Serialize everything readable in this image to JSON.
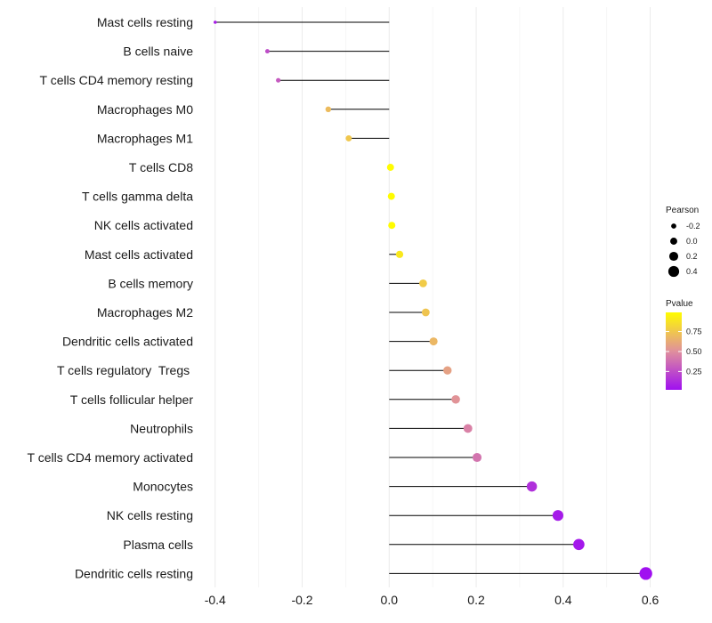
{
  "chart_data": {
    "type": "lollipop",
    "title": "",
    "xlabel": "",
    "ylabel": "",
    "xlim": [
      -0.42,
      0.605
    ],
    "x_ticks": [
      -0.4,
      -0.2,
      0.0,
      0.2,
      0.4,
      0.6
    ],
    "x_tick_labels": [
      "-0.4",
      "-0.2",
      "0.0",
      "0.2",
      "0.4",
      "0.6"
    ],
    "grid": true,
    "categories": [
      "Mast cells resting",
      "B cells naive",
      "T cells CD4 memory resting",
      "Macrophages M0",
      "Macrophages M1",
      "T cells CD8",
      "T cells gamma delta",
      "NK cells activated",
      "Mast cells activated",
      "B cells memory",
      "Macrophages M2",
      "Dendritic cells activated",
      "T cells regulatory  Tregs ",
      "T cells follicular helper",
      "Neutrophils",
      "T cells CD4 memory activated",
      "Monocytes",
      "NK cells resting",
      "Plasma cells",
      "Dendritic cells resting"
    ],
    "pearson": [
      -0.4,
      -0.28,
      -0.255,
      -0.14,
      -0.093,
      0.003,
      0.005,
      0.006,
      0.024,
      0.078,
      0.084,
      0.102,
      0.134,
      0.153,
      0.181,
      0.202,
      0.328,
      0.388,
      0.436,
      0.59
    ],
    "pvalue": [
      0.07,
      0.25,
      0.3,
      0.7,
      0.75,
      0.99,
      0.99,
      0.99,
      0.9,
      0.77,
      0.74,
      0.68,
      0.58,
      0.52,
      0.45,
      0.4,
      0.14,
      0.06,
      0.05,
      0.02
    ],
    "legend": {
      "size_title": "Pearson",
      "size_values": [
        -0.2,
        0.0,
        0.2,
        0.4
      ],
      "size_labels": [
        "-0.2",
        "0.0",
        "0.2",
        "0.4"
      ],
      "color_title": "Pvalue",
      "color_ticks": [
        0.25,
        0.5,
        0.75
      ],
      "color_labels": [
        "0.25",
        "0.50",
        "0.75"
      ],
      "color_range": [
        0.02,
        0.99
      ],
      "position": "right"
    },
    "colors": {
      "low": "#a010f0",
      "mid": "#e0909c",
      "high": "#fffc00",
      "segment": "#000000",
      "grid": "#ebebeb"
    }
  }
}
